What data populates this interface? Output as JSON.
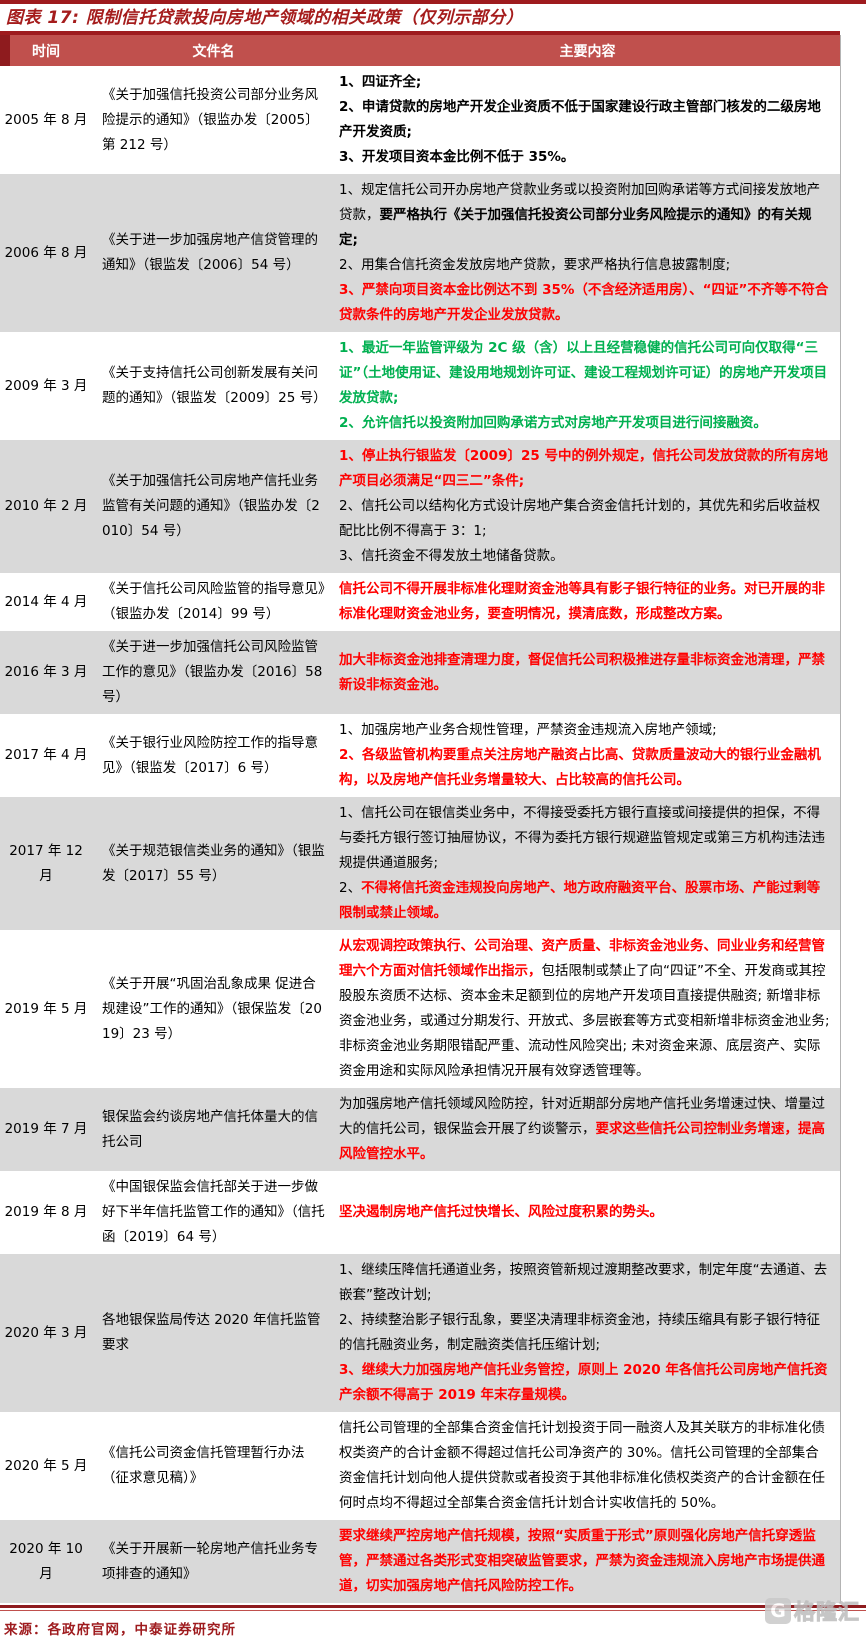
{
  "title": "图表 17: 限制信托贷款投向房地产领域的相关政策（仅列示部分）",
  "colors": {
    "rule_dark_red": "#9e1b1e",
    "header_band": "#c0504d",
    "header_stripe": "#8e1b1e",
    "row_gray": "#d9d9d9",
    "highlight_red": "#ff0000",
    "highlight_green": "#00b050",
    "title_red": "#a51c1c"
  },
  "table": {
    "headers": [
      "时间",
      "文件名",
      "主要内容"
    ],
    "rows": [
      {
        "time": "2005 年 8 月",
        "doc": "《关于加强信托投资公司部分业务风险提示的通知》（银监办发〔2005〕第 212 号）",
        "shade": "white",
        "content": [
          [
            {
              "t": "1、四证齐全;",
              "s": "b"
            }
          ],
          [
            {
              "t": "2、申请贷款的房地产开发企业资质不低于国家建设行政主管部门核发的二级房地产开发资质;",
              "s": "b"
            }
          ],
          [
            {
              "t": "3、开发项目资本金比例不低于 35%。",
              "s": "b"
            }
          ]
        ]
      },
      {
        "time": "2006 年 8 月",
        "doc": "《关于进一步加强房地产信贷管理的通知》（银监发〔2006〕54 号）",
        "shade": "gray",
        "content": [
          [
            {
              "t": "1、规定信托公司开办房地产贷款业务或以投资附加回购承诺等方式间接发放地产贷款，",
              "s": "n"
            },
            {
              "t": "要严格执行《关于加强信托投资公司部分业务风险提示的通知》的有关规定;",
              "s": "b"
            }
          ],
          [
            {
              "t": "2、用集合信托资金发放房地产贷款，要求严格执行信息披露制度;",
              "s": "n"
            }
          ],
          [
            {
              "t": "3、严禁向项目资本金比例达不到 35%（不含经济适用房）、“四证”不齐等不符合贷款条件的房地产开发企业发放贷款。",
              "s": "r"
            }
          ]
        ]
      },
      {
        "time": "2009 年 3 月",
        "doc": "《关于支持信托公司创新发展有关问题的通知》（银监发〔2009〕25 号）",
        "shade": "white",
        "content": [
          [
            {
              "t": "1、最近一年监管评级为 2C 级（含）以上且经营稳健的信托公司可向仅取得“三证”（土地使用证、建设用地规划许可证、建设工程规划许可证）的房地产开发项目发放贷款;",
              "s": "g"
            }
          ],
          [
            {
              "t": "2、允许信托以投资附加回购承诺方式对房地产开发项目进行间接融资。",
              "s": "g"
            }
          ]
        ]
      },
      {
        "time": "2010 年 2 月",
        "doc": "《关于加强信托公司房地产信托业务监管有关问题的通知》（银监办发〔2010〕54 号）",
        "shade": "gray",
        "content": [
          [
            {
              "t": "1、停止执行银监发〔2009〕25 号中的例外规定，信托公司发放贷款的所有房地产项目必须满足“四三二”条件;",
              "s": "r"
            }
          ],
          [
            {
              "t": "2、信托公司以结构化方式设计房地产集合资金信托计划的，其优先和劣后收益权配比比例不得高于 3：1;",
              "s": "n"
            }
          ],
          [
            {
              "t": "3、信托资金不得发放土地储备贷款。",
              "s": "n"
            }
          ]
        ]
      },
      {
        "time": "2014 年 4 月",
        "doc": "《关于信托公司风险监管的指导意见》（银监办发〔2014〕99 号）",
        "shade": "white",
        "content": [
          [
            {
              "t": "信托公司不得开展非标准化理财资金池等具有影子银行特征的业务。对已开展的非标准化理财资金池业务，要查明情况，摸清底数，形成整改方案。",
              "s": "r"
            }
          ]
        ]
      },
      {
        "time": "2016 年 3 月",
        "doc": "《关于进一步加强信托公司风险监管工作的意见》（银监办发〔2016〕58 号）",
        "shade": "gray",
        "content": [
          [
            {
              "t": "加大非标资金池排查清理力度，督促信托公司积极推进存量非标资金池清理，严禁新设非标资金池。",
              "s": "r"
            }
          ]
        ]
      },
      {
        "time": "2017 年 4 月",
        "doc": "《关于银行业风险防控工作的指导意见》（银监发〔2017〕6 号）",
        "shade": "white",
        "content": [
          [
            {
              "t": "1、加强房地产业务合规性管理，严禁资金违规流入房地产领域;",
              "s": "n"
            }
          ],
          [
            {
              "t": "2、各级监管机构要重点关注房地产融资占比高、贷款质量波动大的银行业金融机构，以及房地产信托业务增量较大、占比较高的信托公司。",
              "s": "r"
            }
          ]
        ]
      },
      {
        "time": "2017 年 12 月",
        "doc": "《关于规范银信类业务的通知》（银监发〔2017〕55 号）",
        "shade": "gray",
        "content": [
          [
            {
              "t": "1、信托公司在银信类业务中，不得接受委托方银行直接或间接提供的担保，不得与委托方银行签订抽屉协议，不得为委托方银行规避监管规定或第三方机构违法违规提供通道服务;",
              "s": "n"
            }
          ],
          [
            {
              "t": "2、",
              "s": "n"
            },
            {
              "t": "不得将信托资金违规投向房地产、地方政府融资平台、股票市场、产能过剩等限制或禁止领域。",
              "s": "r"
            }
          ]
        ]
      },
      {
        "time": "2019 年 5 月",
        "doc": "《关于开展“巩固治乱象成果 促进合规建设”工作的通知》（银保监发〔2019〕23 号）",
        "shade": "white",
        "content": [
          [
            {
              "t": "从宏观调控政策执行、公司治理、资产质量、非标资金池业务、同业业务和经营管理六个方面对信托领域作出指示，",
              "s": "r"
            },
            {
              "t": "包括限制或禁止了向“四证”不全、开发商或其控股股东资质不达标、资本金未足额到位的房地产开发项目直接提供融资; 新增非标资金池业务，或通过分期发行、开放式、多层嵌套等方式变相新增非标资金池业务; 非标资金池业务期限错配严重、流动性风险突出; 未对资金来源、底层资产、实际资金用途和实际风险承担情况开展有效穿透管理等。",
              "s": "n"
            }
          ]
        ]
      },
      {
        "time": "2019 年 7 月",
        "doc": "银保监会约谈房地产信托体量大的信托公司",
        "shade": "gray",
        "content": [
          [
            {
              "t": "为加强房地产信托领域风险防控，针对近期部分房地产信托业务增速过快、增量过大的信托公司，银保监会开展了约谈警示，",
              "s": "n"
            },
            {
              "t": "要求这些信托公司控制业务增速，提高风险管控水平。",
              "s": "r"
            }
          ]
        ]
      },
      {
        "time": "2019 年 8 月",
        "doc": "《中国银保监会信托部关于进一步做好下半年信托监管工作的通知》（信托函〔2019〕64 号）",
        "shade": "white",
        "content": [
          [
            {
              "t": "坚决遏制房地产信托过快增长、风险过度积累的势头。",
              "s": "r"
            }
          ]
        ]
      },
      {
        "time": "2020 年 3 月",
        "doc": "各地银保监局传达 2020 年信托监管要求",
        "shade": "gray",
        "content": [
          [
            {
              "t": "1、继续压降信托通道业务，按照资管新规过渡期整改要求，制定年度“去通道、去嵌套”整改计划;",
              "s": "n"
            }
          ],
          [
            {
              "t": "2、持续整治影子银行乱象，要坚决清理非标资金池，持续压缩具有影子银行特征的信托融资业务，制定融资类信托压缩计划;",
              "s": "n"
            }
          ],
          [
            {
              "t": "3、继续大力加强房地产信托业务管控，原则上 2020 年各信托公司房地产信托资产余额不得高于 2019 年末存量规模。",
              "s": "r"
            }
          ]
        ]
      },
      {
        "time": "2020 年 5 月",
        "doc": "《信托公司资金信托管理暂行办法（征求意见稿）》",
        "shade": "white",
        "content": [
          [
            {
              "t": "信托公司管理的全部集合资金信托计划投资于同一融资人及其关联方的非标准化债权类资产的合计金额不得超过信托公司净资产的 30%。信托公司管理的全部集合资金信托计划向他人提供贷款或者投资于其他非标准化债权类资产的合计金额在任何时点均不得超过全部集合资金信托计划合计实收信托的 50%。",
              "s": "n"
            }
          ]
        ]
      },
      {
        "time": "2020 年 10 月",
        "doc": "《关于开展新一轮房地产信托业务专项排查的通知》",
        "shade": "gray",
        "content": [
          [
            {
              "t": "要求继续严控房地产信托规模，按照“实质重于形式”原则强化房地产信托穿透监管，严禁通过各类形式变相突破监管要求，严禁为资金违规流入房地产市场提供通道，切实加强房地产信托风险防控工作。",
              "s": "r"
            }
          ]
        ]
      }
    ]
  },
  "footer": {
    "source": "来源：各政府官网，中泰证券研究所"
  },
  "watermark": {
    "logo_letter": "G",
    "label": "格隆汇"
  }
}
